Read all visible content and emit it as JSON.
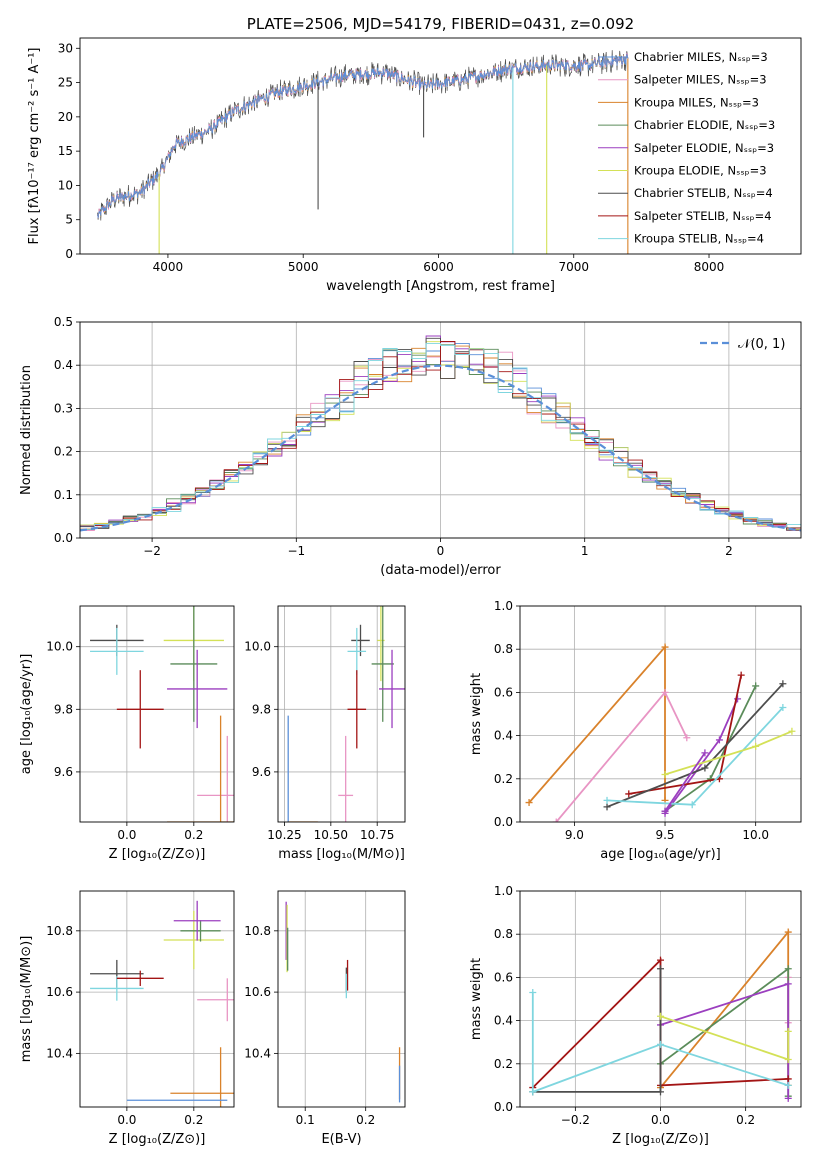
{
  "chart_data": [
    {
      "id": "spectrum",
      "type": "line",
      "title": "PLATE=2506, MJD=54179, FIBERID=0431, z=0.092",
      "xlabel": "wavelength [Angstrom, rest frame]",
      "ylabel": "Flux [fλ10⁻¹⁷ erg cm⁻² s⁻¹ A⁻¹]",
      "xlim": [
        3350,
        8680
      ],
      "ylim": [
        0,
        31.5
      ],
      "xticks": [
        4000,
        5000,
        6000,
        7000,
        8000
      ],
      "yticks": [
        0,
        5,
        10,
        15,
        20,
        25,
        30
      ],
      "series": [
        {
          "name": "Chabrier MILES, Nₛₛₚ=3",
          "color": "#5a8fd8"
        },
        {
          "name": "Salpeter MILES, Nₛₛₚ=3",
          "color": "#e895c4"
        },
        {
          "name": "Kroupa MILES, Nₛₛₚ=3",
          "color": "#d9822b"
        },
        {
          "name": "Chabrier ELODIE, Nₛₛₚ=3",
          "color": "#5b8c5a"
        },
        {
          "name": "Salpeter ELODIE, Nₛₛₚ=3",
          "color": "#9b3fbf"
        },
        {
          "name": "Kroupa ELODIE, Nₛₛₚ=3",
          "color": "#d4e157"
        },
        {
          "name": "Chabrier STELIB, Nₛₛₚ=4",
          "color": "#4d4d4d"
        },
        {
          "name": "Salpeter STELIB, Nₛₛₚ=4",
          "color": "#a31515"
        },
        {
          "name": "Kroupa STELIB, Nₛₛₚ=4",
          "color": "#7fd6df"
        }
      ],
      "continuum": {
        "x": [
          3480,
          3600,
          3800,
          3950,
          4050,
          4300,
          4500,
          4800,
          5100,
          5300,
          5600,
          5900,
          6200,
          6500,
          6800,
          7100,
          7400
        ],
        "y": [
          5.5,
          8,
          9,
          12,
          16,
          18,
          21,
          23.5,
          25,
          26,
          26.5,
          24.5,
          25.5,
          27,
          27.5,
          27.5,
          28.5
        ]
      },
      "spikes": [
        {
          "x": 3935,
          "y": 0,
          "color": "#d4e157"
        },
        {
          "x": 6800,
          "y": 0,
          "color": "#d4e157"
        },
        {
          "x": 6550,
          "y": 0,
          "color": "#7fd6df"
        },
        {
          "x": 7400,
          "y": 0,
          "color": "#d9822b"
        },
        {
          "x": 5110,
          "y": 6.5,
          "color": "#4d4d4d"
        },
        {
          "x": 5890,
          "y": 17,
          "color": "#4d4d4d"
        }
      ]
    },
    {
      "id": "residuals",
      "type": "line",
      "xlabel": "(data-model)/error",
      "ylabel": "Normed distribution",
      "xlim": [
        -2.5,
        2.5
      ],
      "ylim": [
        0,
        0.5
      ],
      "xticks": [
        -2,
        -1,
        0,
        1,
        2
      ],
      "yticks": [
        0.0,
        0.1,
        0.2,
        0.3,
        0.4,
        0.5
      ],
      "legend": "𝒩(0, 1)",
      "gaussian_color": "#5a8fd8"
    },
    {
      "id": "age-vs-Z",
      "type": "scatter",
      "xlabel": "Z [log₁₀(Z/Z⊙)]",
      "ylabel": "age  [log₁₀(age/yr)]",
      "xlim": [
        -0.14,
        0.32
      ],
      "ylim": [
        9.44,
        10.13
      ],
      "xticks": [
        0.0,
        0.2
      ],
      "yticks": [
        9.6,
        9.8,
        10.0
      ],
      "points": [
        {
          "x": -0.03,
          "y": 10.02,
          "xerr": 0.08,
          "yerr": 0.05,
          "color": "#4d4d4d"
        },
        {
          "x": -0.03,
          "y": 9.985,
          "xerr": 0.08,
          "yerr": 0.075,
          "color": "#7fd6df"
        },
        {
          "x": 0.2,
          "y": 10.02,
          "xerr": 0.09,
          "yerr": 0.13,
          "color": "#d4e157"
        },
        {
          "x": 0.2,
          "y": 9.945,
          "xerr": 0.07,
          "yerr": 0.185,
          "color": "#5b8c5a"
        },
        {
          "x": 0.04,
          "y": 9.8,
          "xerr": 0.07,
          "yerr": 0.125,
          "color": "#a31515"
        },
        {
          "x": 0.21,
          "y": 9.865,
          "xerr": 0.09,
          "yerr": 0.125,
          "color": "#9b3fbf"
        },
        {
          "x": 0.3,
          "y": 9.525,
          "xerr": 0.09,
          "yerr": 0.19,
          "color": "#e895c4"
        },
        {
          "x": 0.28,
          "y": 9.44,
          "xerr": 0.16,
          "yerr": 0.34,
          "color": "#d9822b"
        }
      ]
    },
    {
      "id": "age-vs-mass",
      "type": "scatter",
      "xlabel": "mass [log₁₀(M/M⊙)]",
      "xlim": [
        10.215,
        10.9
      ],
      "ylim": [
        9.44,
        10.13
      ],
      "xticks": [
        10.25,
        10.5,
        10.75
      ],
      "yticks": [
        9.6,
        9.8,
        10.0
      ],
      "points": [
        {
          "x": 10.66,
          "y": 10.02,
          "xerr": 0.05,
          "yerr": 0.05,
          "color": "#4d4d4d"
        },
        {
          "x": 10.64,
          "y": 9.985,
          "xerr": 0.05,
          "yerr": 0.075,
          "color": "#7fd6df"
        },
        {
          "x": 10.77,
          "y": 10.02,
          "xerr": 0.02,
          "yerr": 0.13,
          "color": "#d4e157"
        },
        {
          "x": 10.78,
          "y": 9.945,
          "xerr": 0.06,
          "yerr": 0.185,
          "color": "#5b8c5a"
        },
        {
          "x": 10.64,
          "y": 9.8,
          "xerr": 0.05,
          "yerr": 0.125,
          "color": "#a31515"
        },
        {
          "x": 10.83,
          "y": 9.865,
          "xerr": 0.07,
          "yerr": 0.125,
          "color": "#9b3fbf"
        },
        {
          "x": 10.58,
          "y": 9.525,
          "xerr": 0.04,
          "yerr": 0.19,
          "color": "#e895c4"
        },
        {
          "x": 10.27,
          "y": 9.44,
          "xerr": 0.0,
          "yerr": 0.34,
          "color": "#5a8fd8"
        },
        {
          "x": 10.35,
          "y": 9.44,
          "xerr": 0.08,
          "yerr": 0.0,
          "color": "#d9822b"
        }
      ]
    },
    {
      "id": "weight-vs-age",
      "type": "line",
      "xlabel": "age  [log₁₀(age/yr)]",
      "ylabel": "mass weight",
      "xlim": [
        8.7,
        10.25
      ],
      "ylim": [
        0,
        1
      ],
      "xticks": [
        9.0,
        9.5,
        10.0
      ],
      "yticks": [
        0.0,
        0.2,
        0.4,
        0.6,
        0.8,
        1.0
      ],
      "series": [
        {
          "color": "#d9822b",
          "x": [
            8.75,
            9.5,
            9.5
          ],
          "y": [
            0.09,
            0.81,
            0.1
          ]
        },
        {
          "color": "#e895c4",
          "x": [
            8.9,
            9.5,
            9.62
          ],
          "y": [
            0.0,
            0.6,
            0.39
          ]
        },
        {
          "color": "#5b8c5a",
          "x": [
            9.5,
            9.75,
            10.0
          ],
          "y": [
            0.05,
            0.2,
            0.63
          ]
        },
        {
          "color": "#9b3fbf",
          "x": [
            9.5,
            9.8,
            9.9
          ],
          "y": [
            0.04,
            0.38,
            0.57
          ]
        },
        {
          "color": "#a31515",
          "x": [
            9.3,
            9.8,
            9.92
          ],
          "y": [
            0.13,
            0.2,
            0.68
          ]
        },
        {
          "color": "#4d4d4d",
          "x": [
            9.18,
            9.72,
            10.15
          ],
          "y": [
            0.07,
            0.25,
            0.64
          ]
        },
        {
          "color": "#7fd6df",
          "x": [
            9.18,
            9.65,
            10.15
          ],
          "y": [
            0.1,
            0.08,
            0.53
          ]
        },
        {
          "color": "#d4e157",
          "x": [
            9.5,
            10.0,
            10.2
          ],
          "y": [
            0.22,
            0.35,
            0.42
          ]
        },
        {
          "color": "#9b3fbf",
          "x": [
            9.5,
            9.72
          ],
          "y": [
            0.05,
            0.32
          ]
        }
      ]
    },
    {
      "id": "mass-vs-Z",
      "type": "scatter",
      "xlabel": "Z [log₁₀(Z/Z⊙)]",
      "ylabel": "mass [log₁₀(M/M⊙)]",
      "xlim": [
        -0.14,
        0.32
      ],
      "ylim": [
        10.225,
        10.93
      ],
      "xticks": [
        0.0,
        0.2
      ],
      "yticks": [
        10.4,
        10.6,
        10.8
      ],
      "points": [
        {
          "x": -0.03,
          "y": 10.66,
          "xerr": 0.08,
          "yerr": 0.045,
          "color": "#4d4d4d"
        },
        {
          "x": -0.03,
          "y": 10.612,
          "xerr": 0.08,
          "yerr": 0.04,
          "color": "#7fd6df"
        },
        {
          "x": 0.2,
          "y": 10.77,
          "xerr": 0.09,
          "yerr": 0.095,
          "color": "#d4e157"
        },
        {
          "x": 0.22,
          "y": 10.8,
          "xerr": 0.06,
          "yerr": 0.035,
          "color": "#5b8c5a"
        },
        {
          "x": 0.04,
          "y": 10.645,
          "xerr": 0.07,
          "yerr": 0.025,
          "color": "#a31515"
        },
        {
          "x": 0.21,
          "y": 10.833,
          "xerr": 0.07,
          "yerr": 0.065,
          "color": "#9b3fbf"
        },
        {
          "x": 0.3,
          "y": 10.575,
          "xerr": 0.09,
          "yerr": 0.07,
          "color": "#e895c4"
        },
        {
          "x": 0.28,
          "y": 10.27,
          "xerr": 0.15,
          "yerr": 0.15,
          "color": "#d9822b"
        },
        {
          "x": 0.15,
          "y": 10.247,
          "xerr": 0.15,
          "yerr": 0.0,
          "color": "#5a8fd8"
        }
      ]
    },
    {
      "id": "mass-vs-EBV",
      "type": "scatter",
      "xlabel": "E(B-V)",
      "xlim": [
        0.055,
        0.265
      ],
      "ylim": [
        10.225,
        10.93
      ],
      "xticks": [
        0.1,
        0.2
      ],
      "yticks": [
        10.4,
        10.6,
        10.8
      ],
      "points": [
        {
          "x": 0.0685,
          "y": 10.8,
          "yerr": 0.095,
          "color": "#9b3fbf"
        },
        {
          "x": 0.07,
          "y": 10.775,
          "yerr": 0.11,
          "color": "#d4e157"
        },
        {
          "x": 0.071,
          "y": 10.74,
          "yerr": 0.07,
          "color": "#5b8c5a"
        },
        {
          "x": 0.17,
          "y": 10.655,
          "yerr": 0.05,
          "color": "#a31515"
        },
        {
          "x": 0.168,
          "y": 10.64,
          "yerr": 0.04,
          "color": "#4d4d4d"
        },
        {
          "x": 0.168,
          "y": 10.62,
          "yerr": 0.04,
          "color": "#7fd6df"
        },
        {
          "x": 0.256,
          "y": 10.335,
          "yerr": 0.085,
          "color": "#d9822b"
        },
        {
          "x": 0.256,
          "y": 10.3,
          "yerr": 0.06,
          "color": "#5a8fd8"
        }
      ]
    },
    {
      "id": "weight-vs-Z",
      "type": "line",
      "xlabel": "Z [log₁₀(Z/Z⊙)]",
      "ylabel": "mass weight",
      "xlim": [
        -0.33,
        0.33
      ],
      "ylim": [
        0,
        1
      ],
      "xticks": [
        -0.2,
        0.0,
        0.2
      ],
      "yticks": [
        0.0,
        0.2,
        0.4,
        0.6,
        0.8,
        1.0
      ],
      "series": [
        {
          "color": "#d9822b",
          "x": [
            0.0,
            0.3,
            0.3
          ],
          "y": [
            0.09,
            0.81,
            0.1
          ]
        },
        {
          "color": "#e895c4",
          "x": [
            0.3,
            0.3
          ],
          "y": [
            0.6,
            0.39
          ]
        },
        {
          "color": "#5b8c5a",
          "x": [
            0.0,
            0.3,
            0.3
          ],
          "y": [
            0.2,
            0.64,
            0.05
          ]
        },
        {
          "color": "#9b3fbf",
          "x": [
            0.0,
            0.3,
            0.3
          ],
          "y": [
            0.38,
            0.57,
            0.04
          ]
        },
        {
          "color": "#a31515",
          "x": [
            -0.3,
            0.0,
            0.0,
            0.3
          ],
          "y": [
            0.09,
            0.68,
            0.1,
            0.13
          ]
        },
        {
          "color": "#4d4d4d",
          "x": [
            -0.3,
            0.0,
            0.0
          ],
          "y": [
            0.07,
            0.07,
            0.64
          ]
        },
        {
          "color": "#7fd6df",
          "x": [
            -0.3,
            -0.3,
            0.0,
            0.3
          ],
          "y": [
            0.53,
            0.07,
            0.29,
            0.1
          ]
        },
        {
          "color": "#d4e157",
          "x": [
            0.0,
            0.3,
            0.3
          ],
          "y": [
            0.42,
            0.22,
            0.35
          ]
        }
      ]
    }
  ]
}
